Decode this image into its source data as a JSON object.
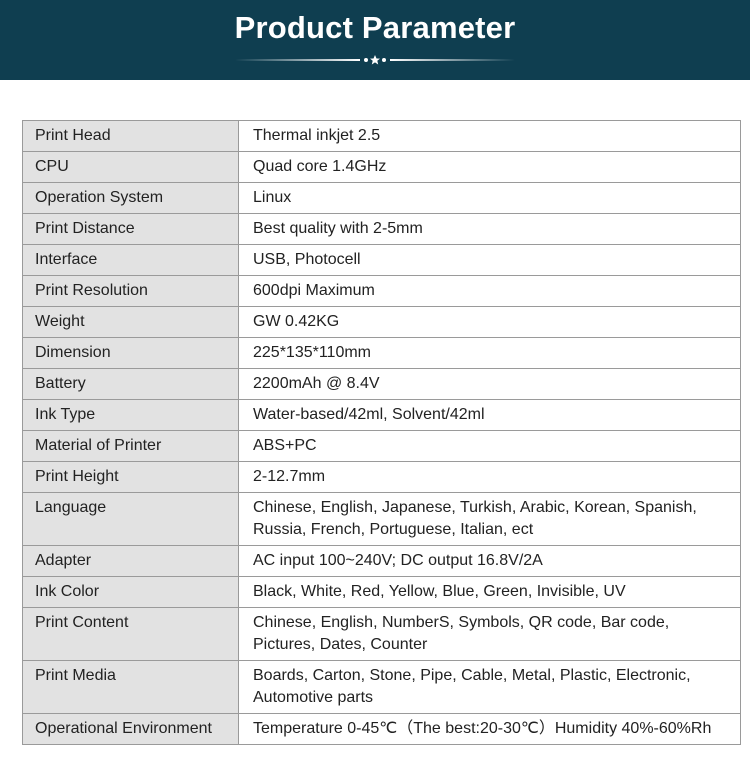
{
  "header": {
    "title": "Product Parameter"
  },
  "colors": {
    "banner": "#0f3e50",
    "label_bg": "#e2e2e2"
  },
  "rows": [
    {
      "label": "Print Head",
      "value": "Thermal inkjet 2.5"
    },
    {
      "label": "CPU",
      "value": "Quad core 1.4GHz"
    },
    {
      "label": "Operation System",
      "value": "Linux"
    },
    {
      "label": "Print Distance",
      "value": "Best quality with 2-5mm"
    },
    {
      "label": "Interface",
      "value": "USB, Photocell"
    },
    {
      "label": "Print Resolution",
      "value": "600dpi Maximum"
    },
    {
      "label": "Weight",
      "value": "GW 0.42KG"
    },
    {
      "label": "Dimension",
      "value": "225*135*110mm"
    },
    {
      "label": "Battery",
      "value": "2200mAh @ 8.4V"
    },
    {
      "label": "Ink Type",
      "value": "Water-based/42ml, Solvent/42ml"
    },
    {
      "label": "Material of Printer",
      "value": "ABS+PC"
    },
    {
      "label": "Print Height",
      "value": "2-12.7mm"
    },
    {
      "label": "Language",
      "value": "Chinese, English, Japanese, Turkish, Arabic, Korean, Spanish, Russia, French, Portuguese, Italian, ect"
    },
    {
      "label": "Adapter",
      "value": "AC input 100~240V; DC output 16.8V/2A"
    },
    {
      "label": "Ink Color",
      "value": "Black, White, Red, Yellow, Blue, Green, Invisible, UV"
    },
    {
      "label": "Print Content",
      "value": "Chinese, English, NumberS, Symbols, QR code, Bar code, Pictures, Dates, Counter"
    },
    {
      "label": "Print Media",
      "value": "Boards, Carton, Stone, Pipe, Cable, Metal, Plastic, Electronic, Automotive parts"
    },
    {
      "label": "Operational Environment",
      "value": "Temperature 0-45℃（The best:20-30℃）Humidity 40%-60%Rh"
    }
  ]
}
